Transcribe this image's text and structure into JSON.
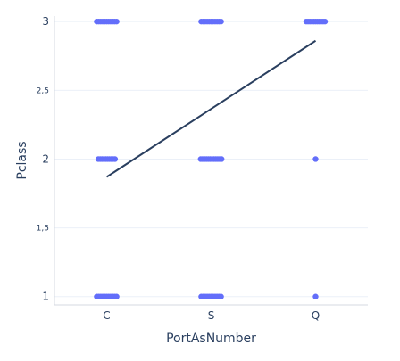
{
  "chart_data": {
    "type": "scatter",
    "xlabel": "PortAsNumber",
    "ylabel": "Pclass",
    "categories": [
      "C",
      "S",
      "Q"
    ],
    "ylim": [
      0.94,
      3.04
    ],
    "y_ticks": [
      {
        "value": 1,
        "label": "1",
        "minor": false
      },
      {
        "value": 1.5,
        "label": "1,5",
        "minor": true
      },
      {
        "value": 2,
        "label": "2",
        "minor": false
      },
      {
        "value": 2.5,
        "label": "2,5",
        "minor": true
      },
      {
        "value": 3,
        "label": "3",
        "minor": false
      }
    ],
    "grid": true,
    "point_color": "#636efa",
    "trend_color": "#2a3f5f",
    "strips": [
      {
        "category": "C",
        "pclass": 3,
        "spread": 0.19
      },
      {
        "category": "C",
        "pclass": 2,
        "spread": 0.16
      },
      {
        "category": "C",
        "pclass": 1,
        "spread": 0.19
      },
      {
        "category": "S",
        "pclass": 3,
        "spread": 0.19
      },
      {
        "category": "S",
        "pclass": 2,
        "spread": 0.2
      },
      {
        "category": "S",
        "pclass": 1,
        "spread": 0.19
      },
      {
        "category": "Q",
        "pclass": 3,
        "spread": 0.18
      },
      {
        "category": "Q",
        "pclass": 2,
        "spread": 0.0
      },
      {
        "category": "Q",
        "pclass": 1,
        "spread": 0.0
      }
    ],
    "trendline": {
      "x": [
        "C",
        "Q"
      ],
      "y": [
        1.87,
        2.86
      ]
    }
  }
}
